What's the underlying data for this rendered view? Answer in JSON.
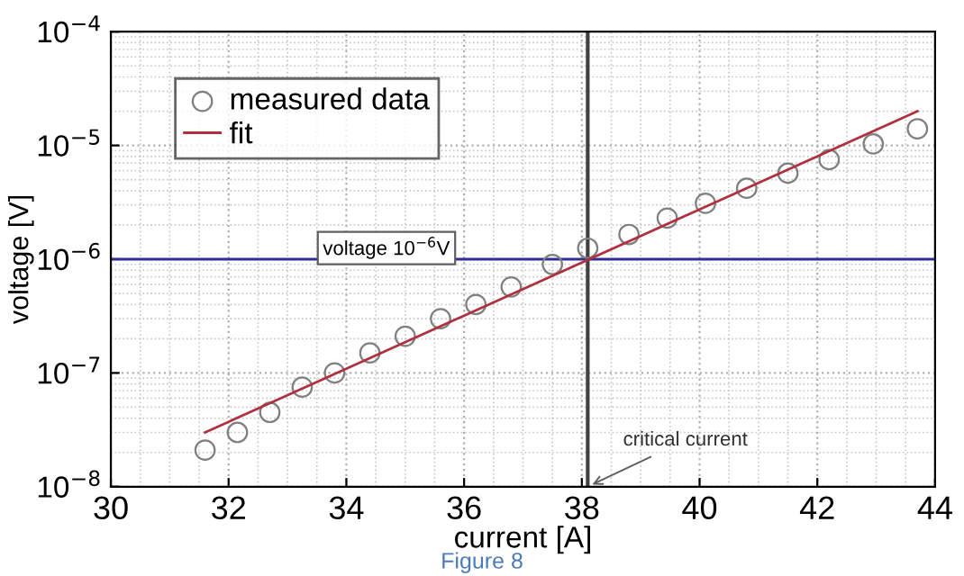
{
  "chart_data": {
    "type": "scatter",
    "xlabel": "current [A]",
    "ylabel": "voltage [V]",
    "series": [
      {
        "name": "measured data",
        "color": "#808080",
        "marker": "circle",
        "x": [
          31.6,
          32.15,
          32.7,
          33.25,
          33.8,
          34.4,
          35.0,
          35.6,
          36.2,
          36.8,
          37.5,
          38.1,
          38.8,
          39.45,
          40.1,
          40.8,
          41.5,
          42.2,
          42.95,
          43.7
        ],
        "values": [
          2.1e-08,
          3e-08,
          4.5e-08,
          7.5e-08,
          1e-07,
          1.5e-07,
          2.1e-07,
          3e-07,
          4e-07,
          5.7e-07,
          9e-07,
          1.25e-06,
          1.65e-06,
          2.3e-06,
          3.1e-06,
          4.2e-06,
          5.7e-06,
          7.5e-06,
          1.03e-05,
          1.4e-05
        ]
      },
      {
        "name": "fit",
        "type": "line",
        "color": "#b03040",
        "line_style": "solid",
        "x": [
          31.6,
          43.7
        ],
        "values": [
          3e-08,
          2e-05
        ]
      }
    ],
    "ref_lines": [
      {
        "axis": "y",
        "value": 1e-06,
        "label": "voltage 10$^{−6}$V",
        "color": "#303090"
      },
      {
        "axis": "x",
        "value": 38.1,
        "color": "#404040"
      }
    ],
    "annotations": [
      {
        "text": "critical current",
        "x": 38.1,
        "y": 1e-08
      },
      "Figure 8"
    ],
    "log": "y",
    "xlim": [
      30,
      44
    ],
    "xticks": [
      30,
      32,
      34,
      36,
      38,
      40,
      42,
      44
    ],
    "ylim": [
      1e-08,
      0.0001
    ],
    "yticks": [
      {
        "value": 1e-08,
        "label": "10$^{−8}$"
      },
      {
        "value": 1e-07,
        "label": "10$^{−7}$"
      },
      {
        "value": 1e-06,
        "label": "10$^{−6}$"
      },
      {
        "value": 1e-05,
        "label": "10$^{−5}$"
      },
      {
        "value": 0.0001,
        "label": "10$^{−4}$"
      }
    ],
    "grid": true,
    "legend": "top left"
  }
}
